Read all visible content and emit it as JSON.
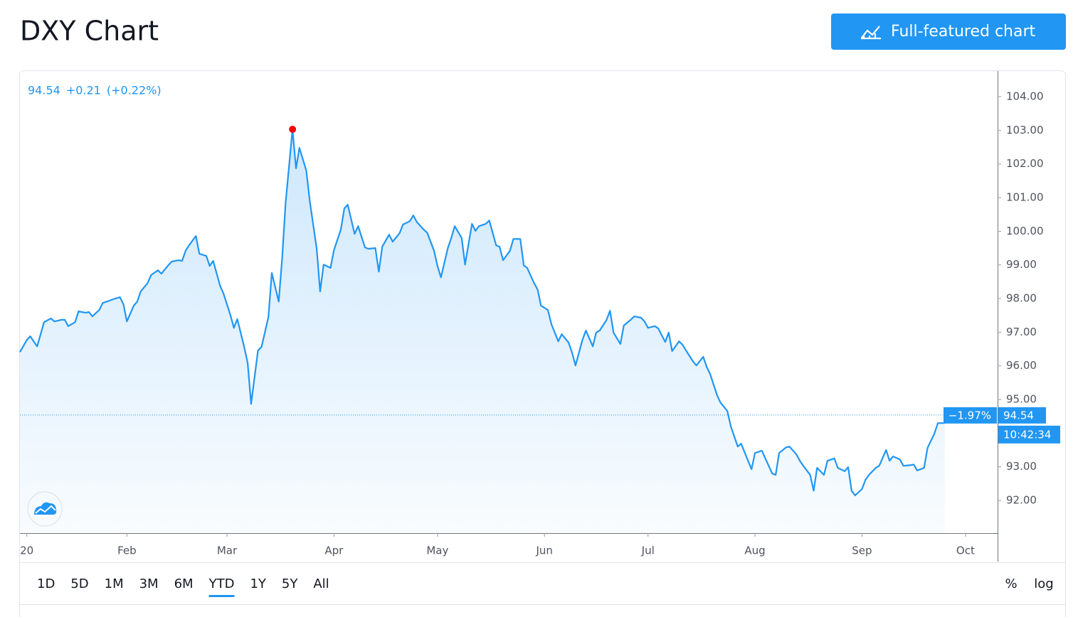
{
  "header": {
    "title": "DXY Chart",
    "button": "Full-featured chart"
  },
  "chart_data": {
    "type": "area",
    "quote": {
      "change": "+0.21",
      "change_percent": "(+0.22%)"
    },
    "last_price": 94.54,
    "last_change_percent": "−1.97%",
    "time": "10:42:34",
    "color": "#2196f3",
    "peak_color": "#ff0000",
    "xlim": [
      0,
      283.3
    ],
    "xticks": [
      {
        "value": 2,
        "label": "20"
      },
      {
        "value": 31,
        "label": "Feb"
      },
      {
        "value": 60,
        "label": "Mar"
      },
      {
        "value": 91,
        "label": "Apr"
      },
      {
        "value": 121,
        "label": "May"
      },
      {
        "value": 152,
        "label": "Jun"
      },
      {
        "value": 182,
        "label": "Jul"
      },
      {
        "value": 213,
        "label": "Aug"
      },
      {
        "value": 244,
        "label": "Sep"
      },
      {
        "value": 274,
        "label": "Oct"
      }
    ],
    "ylim": [
      91.03,
      104.76
    ],
    "yticks": [
      {
        "value": 92,
        "label": "92.00"
      },
      {
        "value": 93,
        "label": "93.00"
      },
      {
        "value": 94,
        "label": "94.00"
      },
      {
        "value": 95,
        "label": "95.00"
      },
      {
        "value": 96,
        "label": "96.00"
      },
      {
        "value": 97,
        "label": "97.00"
      },
      {
        "value": 98,
        "label": "98.00"
      },
      {
        "value": 99,
        "label": "99.00"
      },
      {
        "value": 100,
        "label": "100.00"
      },
      {
        "value": 101,
        "label": "101.00"
      },
      {
        "value": 102,
        "label": "102.00"
      },
      {
        "value": 103,
        "label": "103.00"
      },
      {
        "value": 104,
        "label": "104.00"
      }
    ],
    "x": [
      0,
      2,
      3,
      5,
      6,
      7,
      9,
      10,
      12,
      13,
      14,
      16,
      17,
      19,
      20,
      21,
      23,
      24,
      26,
      27,
      29,
      30,
      31,
      33,
      34,
      35,
      37,
      38,
      40,
      41,
      43,
      44,
      46,
      47,
      48,
      49,
      51,
      52,
      54,
      55,
      56,
      58,
      59,
      61,
      62,
      63,
      65,
      66,
      67,
      69,
      70,
      72,
      73,
      75,
      76,
      77,
      79,
      80,
      81,
      83,
      84,
      86,
      87,
      88,
      90,
      91,
      93,
      94,
      95,
      97,
      98,
      100,
      101,
      103,
      104,
      105,
      107,
      108,
      110,
      111,
      113,
      114,
      115,
      117,
      118,
      120,
      121,
      122,
      124,
      125,
      126,
      128,
      129,
      131,
      132,
      133,
      135,
      136,
      138,
      139,
      140,
      142,
      143,
      145,
      146,
      147,
      149,
      150,
      151,
      153,
      154,
      156,
      157,
      159,
      160,
      161,
      163,
      164,
      166,
      167,
      168,
      170,
      171,
      172,
      174,
      175,
      177,
      178,
      180,
      181,
      182,
      184,
      185,
      187,
      188,
      189,
      191,
      192,
      193,
      195,
      196,
      198,
      199,
      200,
      202,
      203,
      205,
      206,
      208,
      209,
      211,
      212,
      213,
      215,
      216,
      218,
      219,
      220,
      222,
      223,
      225,
      226,
      227,
      229,
      230,
      231,
      233,
      234,
      236,
      237,
      239,
      240,
      241,
      242,
      244,
      245,
      246,
      248,
      249,
      251,
      252,
      253,
      255,
      256,
      258,
      259,
      260,
      262,
      263,
      265,
      266,
      268
    ],
    "values": [
      96.41,
      96.77,
      96.88,
      96.58,
      96.94,
      97.3,
      97.41,
      97.32,
      97.37,
      97.37,
      97.18,
      97.3,
      97.62,
      97.58,
      97.6,
      97.47,
      97.66,
      97.87,
      97.94,
      97.98,
      98.04,
      97.83,
      97.32,
      97.79,
      97.91,
      98.21,
      98.46,
      98.7,
      98.84,
      98.74,
      98.99,
      99.1,
      99.14,
      99.12,
      99.42,
      99.58,
      99.86,
      99.33,
      99.27,
      98.97,
      99.12,
      98.38,
      98.15,
      97.51,
      97.13,
      97.39,
      96.56,
      96.08,
      94.87,
      96.46,
      96.56,
      97.45,
      98.76,
      97.91,
      99.22,
      100.85,
      103.03,
      101.87,
      102.48,
      101.8,
      100.89,
      99.48,
      98.21,
      99.01,
      98.91,
      99.44,
      100.05,
      100.68,
      100.79,
      99.92,
      100.15,
      99.52,
      99.48,
      99.5,
      98.8,
      99.54,
      99.9,
      99.69,
      99.94,
      100.2,
      100.3,
      100.47,
      100.28,
      100.05,
      99.96,
      99.42,
      98.97,
      98.63,
      99.5,
      99.8,
      100.15,
      99.8,
      99.01,
      100.22,
      100.01,
      100.15,
      100.22,
      100.32,
      99.58,
      99.54,
      99.14,
      99.42,
      99.77,
      99.77,
      98.99,
      98.91,
      98.46,
      98.27,
      97.79,
      97.66,
      97.24,
      96.73,
      96.94,
      96.69,
      96.39,
      96.01,
      96.77,
      97.05,
      96.58,
      96.99,
      97.05,
      97.37,
      97.64,
      96.99,
      96.65,
      97.2,
      97.37,
      97.47,
      97.43,
      97.32,
      97.13,
      97.18,
      97.11,
      96.71,
      96.99,
      96.44,
      96.73,
      96.63,
      96.46,
      96.14,
      96.01,
      96.27,
      95.97,
      95.76,
      95.13,
      94.91,
      94.66,
      94.2,
      93.6,
      93.69,
      93.18,
      92.93,
      93.41,
      93.48,
      93.25,
      92.8,
      92.76,
      93.41,
      93.58,
      93.6,
      93.37,
      93.18,
      93.03,
      92.76,
      92.29,
      92.97,
      92.76,
      93.18,
      93.25,
      92.97,
      92.87,
      92.99,
      92.29,
      92.15,
      92.34,
      92.61,
      92.76,
      92.97,
      93.03,
      93.5,
      93.18,
      93.31,
      93.22,
      93.03,
      93.05,
      93.07,
      92.89,
      92.97,
      93.56,
      93.99,
      94.3,
      94.3
    ]
  },
  "toolbar": {
    "ranges": [
      "1D",
      "5D",
      "1M",
      "3M",
      "6M",
      "YTD",
      "1Y",
      "5Y",
      "All"
    ],
    "active_range": "YTD",
    "percent": "%",
    "log": "log"
  }
}
